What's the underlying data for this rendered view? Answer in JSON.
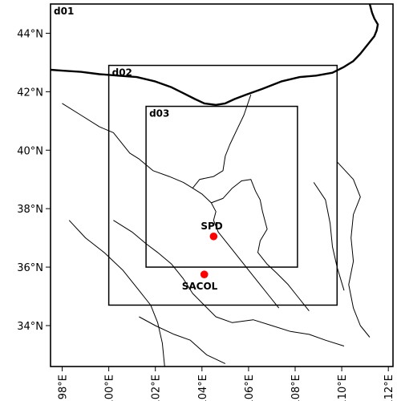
{
  "chart_data": {
    "type": "map",
    "xlim": [
      97.5,
      112.2
    ],
    "ylim": [
      32.6,
      45.0
    ],
    "x_ticks": [
      {
        "value": 98,
        "label": "98°E"
      },
      {
        "value": 100,
        "label": "100°E"
      },
      {
        "value": 102,
        "label": "102°E"
      },
      {
        "value": 104,
        "label": "104°E"
      },
      {
        "value": 106,
        "label": "106°E"
      },
      {
        "value": 108,
        "label": "108°E"
      },
      {
        "value": 110,
        "label": "110°E"
      },
      {
        "value": 112,
        "label": "112°E"
      }
    ],
    "y_ticks": [
      {
        "value": 34,
        "label": "34°N"
      },
      {
        "value": 36,
        "label": "36°N"
      },
      {
        "value": 38,
        "label": "38°N"
      },
      {
        "value": 40,
        "label": "40°N"
      },
      {
        "value": 42,
        "label": "42°N"
      },
      {
        "value": 44,
        "label": "44°N"
      }
    ],
    "domains": [
      {
        "name": "d01",
        "lon": [
          97.5,
          112.2
        ],
        "lat": [
          32.6,
          45.0
        ]
      },
      {
        "name": "d02",
        "lon": [
          100.0,
          109.8
        ],
        "lat": [
          34.7,
          42.9
        ]
      },
      {
        "name": "d03",
        "lon": [
          101.6,
          108.1
        ],
        "lat": [
          36.0,
          41.5
        ]
      }
    ],
    "sites": [
      {
        "name": "SPD",
        "lon": 104.5,
        "lat": 37.05
      },
      {
        "name": "SACOL",
        "lon": 104.1,
        "lat": 35.75
      }
    ],
    "site_color": "#ff0000",
    "national_border": [
      [
        97.5,
        42.75
      ],
      [
        98.0,
        42.72
      ],
      [
        98.8,
        42.68
      ],
      [
        99.6,
        42.6
      ],
      [
        100.4,
        42.55
      ],
      [
        101.2,
        42.5
      ],
      [
        102.0,
        42.35
      ],
      [
        102.7,
        42.15
      ],
      [
        103.2,
        41.95
      ],
      [
        103.7,
        41.75
      ],
      [
        104.1,
        41.6
      ],
      [
        104.6,
        41.55
      ],
      [
        105.0,
        41.6
      ],
      [
        105.4,
        41.75
      ],
      [
        105.9,
        41.9
      ],
      [
        106.6,
        42.1
      ],
      [
        107.4,
        42.35
      ],
      [
        108.2,
        42.5
      ],
      [
        108.9,
        42.55
      ],
      [
        109.6,
        42.65
      ],
      [
        110.1,
        42.85
      ],
      [
        110.5,
        43.05
      ],
      [
        110.8,
        43.3
      ],
      [
        111.0,
        43.5
      ],
      [
        111.2,
        43.7
      ],
      [
        111.4,
        43.9
      ],
      [
        111.5,
        44.1
      ],
      [
        111.55,
        44.3
      ],
      [
        111.4,
        44.5
      ],
      [
        111.3,
        44.7
      ],
      [
        111.2,
        45.0
      ]
    ],
    "provincial_borders": [
      [
        [
          98.0,
          41.6
        ],
        [
          98.8,
          41.2
        ],
        [
          99.6,
          40.8
        ],
        [
          100.2,
          40.6
        ],
        [
          100.5,
          40.3
        ],
        [
          100.9,
          39.9
        ],
        [
          101.3,
          39.7
        ],
        [
          101.9,
          39.3
        ],
        [
          102.6,
          39.1
        ],
        [
          103.2,
          38.9
        ],
        [
          103.6,
          38.7
        ],
        [
          104.0,
          38.5
        ],
        [
          104.4,
          38.2
        ],
        [
          104.6,
          37.9
        ],
        [
          104.5,
          37.6
        ],
        [
          104.7,
          37.2
        ],
        [
          105.0,
          36.9
        ],
        [
          105.3,
          36.6
        ],
        [
          105.7,
          36.2
        ],
        [
          106.1,
          35.8
        ],
        [
          106.5,
          35.4
        ],
        [
          106.9,
          35.0
        ],
        [
          107.3,
          34.6
        ]
      ],
      [
        [
          103.6,
          38.7
        ],
        [
          103.9,
          39.0
        ],
        [
          104.5,
          39.1
        ],
        [
          104.9,
          39.3
        ],
        [
          105.0,
          39.8
        ],
        [
          105.2,
          40.2
        ],
        [
          105.5,
          40.7
        ],
        [
          105.8,
          41.2
        ],
        [
          106.1,
          41.9
        ]
      ],
      [
        [
          104.4,
          38.2
        ],
        [
          104.9,
          38.35
        ],
        [
          105.3,
          38.7
        ],
        [
          105.7,
          38.95
        ],
        [
          106.1,
          39.0
        ],
        [
          106.3,
          38.6
        ],
        [
          106.5,
          38.3
        ],
        [
          106.6,
          37.9
        ],
        [
          106.7,
          37.6
        ],
        [
          106.8,
          37.3
        ],
        [
          106.5,
          36.9
        ],
        [
          106.4,
          36.5
        ],
        [
          106.8,
          36.1
        ],
        [
          107.2,
          35.8
        ],
        [
          107.7,
          35.4
        ],
        [
          108.1,
          35.0
        ],
        [
          108.6,
          34.5
        ]
      ],
      [
        [
          109.8,
          39.6
        ],
        [
          110.5,
          39.0
        ],
        [
          110.8,
          38.4
        ],
        [
          110.5,
          37.8
        ],
        [
          110.4,
          37.0
        ],
        [
          110.5,
          36.2
        ],
        [
          110.3,
          35.4
        ],
        [
          110.5,
          34.6
        ],
        [
          110.8,
          34.0
        ],
        [
          111.2,
          33.6
        ]
      ],
      [
        [
          100.2,
          37.6
        ],
        [
          101.0,
          37.2
        ],
        [
          101.6,
          36.8
        ],
        [
          102.1,
          36.5
        ],
        [
          102.7,
          36.1
        ],
        [
          103.2,
          35.6
        ],
        [
          103.6,
          35.1
        ],
        [
          104.1,
          34.7
        ],
        [
          104.6,
          34.3
        ],
        [
          105.3,
          34.1
        ],
        [
          106.2,
          34.2
        ],
        [
          107.0,
          34.0
        ],
        [
          107.8,
          33.8
        ],
        [
          108.6,
          33.7
        ],
        [
          109.3,
          33.5
        ],
        [
          110.1,
          33.3
        ]
      ],
      [
        [
          98.3,
          37.6
        ],
        [
          99.0,
          37.0
        ],
        [
          99.8,
          36.5
        ],
        [
          100.6,
          35.9
        ],
        [
          101.3,
          35.2
        ],
        [
          101.8,
          34.7
        ],
        [
          102.1,
          34.1
        ],
        [
          102.3,
          33.4
        ],
        [
          102.4,
          32.6
        ]
      ],
      [
        [
          101.3,
          34.3
        ],
        [
          102.0,
          34.0
        ],
        [
          102.8,
          33.7
        ],
        [
          103.5,
          33.5
        ],
        [
          104.2,
          33.0
        ],
        [
          105.0,
          32.7
        ]
      ],
      [
        [
          108.8,
          38.9
        ],
        [
          109.3,
          38.3
        ],
        [
          109.5,
          37.5
        ],
        [
          109.6,
          36.7
        ],
        [
          109.8,
          36.0
        ],
        [
          110.1,
          35.2
        ]
      ]
    ]
  }
}
